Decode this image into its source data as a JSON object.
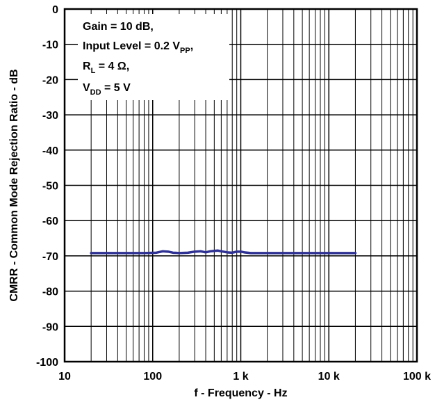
{
  "chart_data": {
    "type": "line",
    "title": "",
    "xlabel": "f - Frequency - Hz",
    "ylabel": "CMRR - Common Mode Rejection Ratio - dB",
    "xscale": "log",
    "xlim": [
      10,
      100000
    ],
    "ylim": [
      -100,
      0
    ],
    "grid": true,
    "x_ticks": [
      {
        "value": 10,
        "label": "10"
      },
      {
        "value": 100,
        "label": "100"
      },
      {
        "value": 1000,
        "label": "1 k"
      },
      {
        "value": 10000,
        "label": "10 k"
      },
      {
        "value": 100000,
        "label": "100 k"
      }
    ],
    "y_ticks": [
      {
        "value": 0,
        "label": "0"
      },
      {
        "value": -10,
        "label": "-10"
      },
      {
        "value": -20,
        "label": "-20"
      },
      {
        "value": -30,
        "label": "-30"
      },
      {
        "value": -40,
        "label": "-40"
      },
      {
        "value": -50,
        "label": "-50"
      },
      {
        "value": -60,
        "label": "-60"
      },
      {
        "value": -70,
        "label": "-70"
      },
      {
        "value": -80,
        "label": "-80"
      },
      {
        "value": -90,
        "label": "-90"
      },
      {
        "value": -100,
        "label": "-100"
      }
    ],
    "annotation": {
      "placement": "top-left",
      "lines": [
        [
          {
            "t": "Gain = 10 dB,"
          }
        ],
        [
          {
            "t": "Input Level = 0.2 V"
          },
          {
            "t": "PP",
            "sub": true
          },
          {
            "t": ","
          }
        ],
        [
          {
            "t": "R"
          },
          {
            "t": "L",
            "sub": true
          },
          {
            "t": " = 4 Ω,"
          }
        ],
        [
          {
            "t": "V"
          },
          {
            "t": "DD",
            "sub": true
          },
          {
            "t": " = 5 V"
          }
        ]
      ]
    },
    "series": [
      {
        "color": "#2e3192",
        "x": [
          20,
          40,
          80,
          110,
          130,
          150,
          170,
          200,
          250,
          300,
          350,
          400,
          450,
          500,
          550,
          600,
          700,
          800,
          900,
          1000,
          1100,
          1300,
          2000,
          5000,
          10000,
          20000
        ],
        "y": [
          -69.2,
          -69.2,
          -69.2,
          -69.1,
          -68.7,
          -68.8,
          -69.1,
          -69.2,
          -69.1,
          -68.8,
          -68.7,
          -69.0,
          -68.7,
          -68.6,
          -68.5,
          -68.7,
          -69.0,
          -69.1,
          -68.8,
          -68.8,
          -69.0,
          -69.2,
          -69.2,
          -69.2,
          -69.2,
          -69.2
        ]
      }
    ]
  }
}
